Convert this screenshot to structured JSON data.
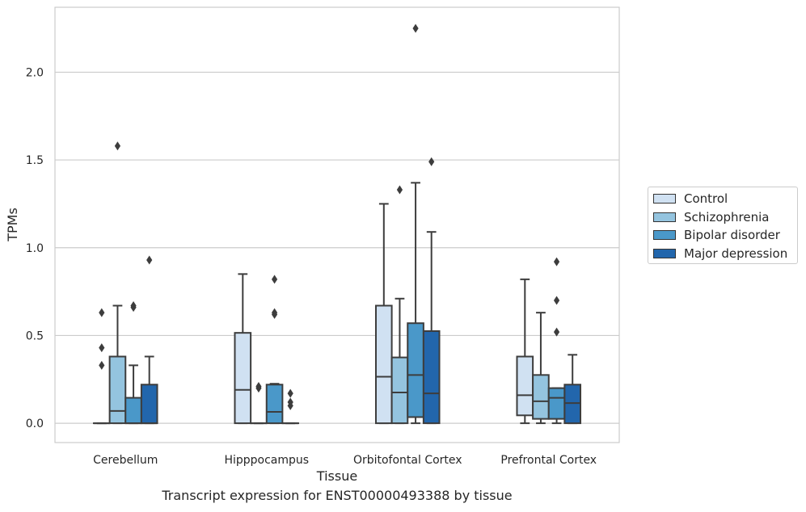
{
  "chart_data": {
    "type": "box",
    "xlabel": "Tissue",
    "ylabel": "TPMs",
    "ylim": [
      -0.11,
      2.37
    ],
    "yticks": [
      "0.0",
      "0.5",
      "1.0",
      "1.5",
      "2.0"
    ],
    "grid": true,
    "legend_position": "right",
    "categories": [
      "Cerebellum",
      "Hipppocampus",
      "Orbitofontal Cortex",
      "Prefrontal Cortex"
    ],
    "series": [
      {
        "name": "Control",
        "color": "#d0e1f2",
        "boxes": [
          {
            "q1": 0,
            "median": 0,
            "q3": 0,
            "whisker_low": 0,
            "whisker_high": 0,
            "outliers": []
          },
          {
            "q1": 0,
            "median": 0.19,
            "q3": 0.515,
            "whisker_low": 0,
            "whisker_high": 0.85,
            "outliers": []
          },
          {
            "q1": 0,
            "median": 0.265,
            "q3": 0.67,
            "whisker_low": 0,
            "whisker_high": 1.25,
            "outliers": []
          },
          {
            "q1": 0.045,
            "median": 0.16,
            "q3": 0.38,
            "whisker_low": 0,
            "whisker_high": 0.82,
            "outliers": []
          }
        ]
      },
      {
        "name": "Schizophrenia",
        "color": "#94c4df",
        "boxes": [
          {
            "q1": 0,
            "median": 0.07,
            "q3": 0.38,
            "whisker_low": 0,
            "whisker_high": 0.67,
            "outliers": [
              1.58
            ]
          },
          {
            "q1": 0,
            "median": 0,
            "q3": 0,
            "whisker_low": 0,
            "whisker_high": 0,
            "outliers": [
              0.2,
              0.21
            ]
          },
          {
            "q1": 0,
            "median": 0.175,
            "q3": 0.375,
            "whisker_low": 0,
            "whisker_high": 0.71,
            "outliers": [
              1.33
            ]
          },
          {
            "q1": 0.025,
            "median": 0.125,
            "q3": 0.275,
            "whisker_low": 0,
            "whisker_high": 0.63,
            "outliers": []
          }
        ]
      },
      {
        "name": "Bipolar disorder",
        "color": "#4a98c9",
        "boxes": [
          {
            "q1": 0,
            "median": 0,
            "q3": 0.145,
            "whisker_low": 0,
            "whisker_high": 0.33,
            "outliers": [
              0.66,
              0.67
            ]
          },
          {
            "q1": 0,
            "median": 0.065,
            "q3": 0.22,
            "whisker_low": 0,
            "whisker_high": 0.225,
            "outliers": [
              0.62,
              0.63,
              0.82
            ]
          },
          {
            "q1": 0.035,
            "median": 0.275,
            "q3": 0.57,
            "whisker_low": 0,
            "whisker_high": 1.37,
            "outliers": [
              2.25
            ]
          },
          {
            "q1": 0.025,
            "median": 0.145,
            "q3": 0.2,
            "whisker_low": 0,
            "whisker_high": 0.2,
            "outliers": [
              0.52,
              0.7,
              0.92
            ]
          }
        ]
      },
      {
        "name": "Major depression",
        "color": "#2266ac",
        "boxes": [
          {
            "q1": 0,
            "median": 0,
            "q3": 0.22,
            "whisker_low": 0,
            "whisker_high": 0.38,
            "outliers": [
              0.93
            ]
          },
          {
            "q1": 0,
            "median": 0,
            "q3": 0,
            "whisker_low": 0,
            "whisker_high": 0,
            "outliers": [
              0.1,
              0.12,
              0.17
            ]
          },
          {
            "q1": 0,
            "median": 0.17,
            "q3": 0.525,
            "whisker_low": 0,
            "whisker_high": 1.09,
            "outliers": [
              1.49
            ]
          },
          {
            "q1": 0,
            "median": 0.115,
            "q3": 0.22,
            "whisker_low": 0,
            "whisker_high": 0.39,
            "outliers": []
          }
        ]
      }
    ],
    "extra_outliers": [
      {
        "category": "Cerebellum",
        "series": "Control",
        "values": [
          0.33,
          0.43,
          0.63
        ]
      }
    ],
    "caption": "Transcript expression for ENST00000493388 by tissue"
  }
}
